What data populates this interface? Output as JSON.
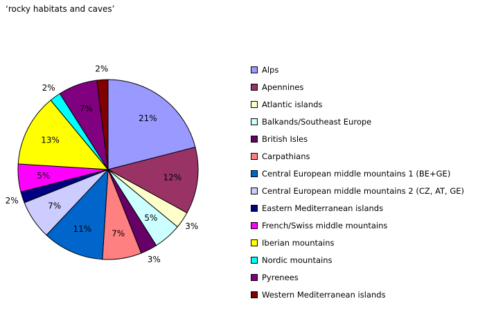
{
  "chart_data": {
    "type": "pie",
    "title": "‘rocky habitats and caves’",
    "legend_position": "right",
    "slices": [
      {
        "label": "Alps",
        "value": 21,
        "display": "21%",
        "color": "#9999ff"
      },
      {
        "label": "Apennines",
        "value": 12,
        "display": "12%",
        "color": "#993366"
      },
      {
        "label": "Atlantic islands",
        "value": 3,
        "display": "3%",
        "color": "#ffffcc"
      },
      {
        "label": "Balkands/Southeast Europe",
        "value": 5,
        "display": "5%",
        "color": "#ccffff"
      },
      {
        "label": "British Isles",
        "value": 3,
        "display": "3%",
        "color": "#660066"
      },
      {
        "label": "Carpathians",
        "value": 7,
        "display": "7%",
        "color": "#ff8080"
      },
      {
        "label": "Central European middle mountains 1 (BE+GE)",
        "value": 11,
        "display": "11%",
        "color": "#0066cc"
      },
      {
        "label": "Central European middle mountains 2 (CZ, AT, GE)",
        "value": 7,
        "display": "7%",
        "color": "#ccccff"
      },
      {
        "label": "Eastern Mediterranean islands",
        "value": 2,
        "display": "2%",
        "color": "#000080"
      },
      {
        "label": "French/Swiss middle mountains",
        "value": 5,
        "display": "5%",
        "color": "#ff00ff"
      },
      {
        "label": "Iberian mountains",
        "value": 13,
        "display": "13%",
        "color": "#ffff00"
      },
      {
        "label": "Nordic mountains",
        "value": 2,
        "display": "2%",
        "color": "#00ffff"
      },
      {
        "label": "Pyrenees",
        "value": 7,
        "display": "7%",
        "color": "#800080"
      },
      {
        "label": "Western Mediterranean islands",
        "value": 2,
        "display": "2%",
        "color": "#800000"
      }
    ]
  }
}
